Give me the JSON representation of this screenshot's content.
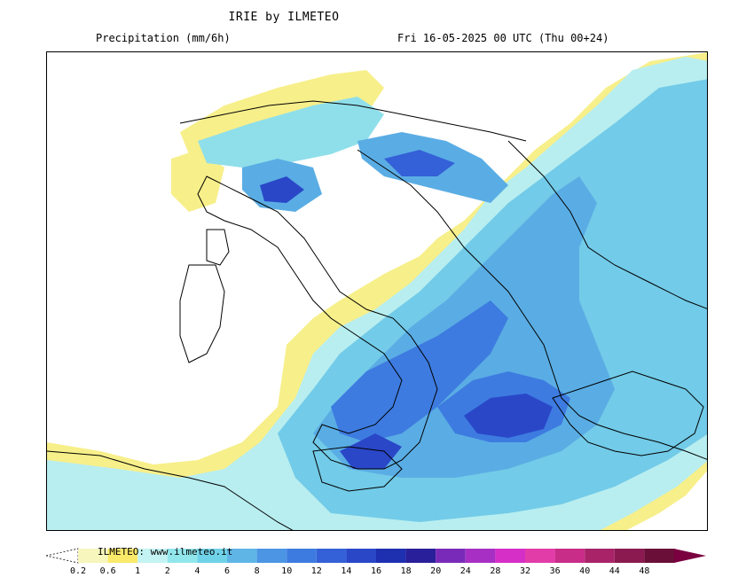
{
  "header": {
    "title": "IRIE by ILMETEO",
    "field_label": "Precipitation (mm/6h)",
    "valid_time": "Fri 16-05-2025 00 UTC (Thu 00+24)"
  },
  "legend": {
    "credit": "ILMETEO: www.ilmeteo.it",
    "unit": "mm/6h",
    "levels": [
      "0.2",
      "0.6",
      "1",
      "2",
      "4",
      "6",
      "8",
      "10",
      "12",
      "14",
      "16",
      "18",
      "20",
      "24",
      "28",
      "32",
      "36",
      "40",
      "44",
      "48"
    ],
    "colors": [
      "#f6f6bd",
      "#fbe96a",
      "#c3f3f3",
      "#91e6ec",
      "#6fd2e8",
      "#5fb6e6",
      "#4b95e4",
      "#3d7be0",
      "#3460d8",
      "#2a47c8",
      "#1e2fb0",
      "#2a1f9a",
      "#7a2ab8",
      "#a72fc4",
      "#d62fc8",
      "#e23ca8",
      "#c82d88",
      "#a82368",
      "#8a1a50",
      "#6a1038"
    ],
    "open_end_left_color": "#ffffff",
    "open_end_right_color": "#7a0040"
  },
  "map": {
    "region": "Italy and central Mediterranean / Balkans",
    "background": "#ffffff",
    "border_color": "#000000"
  }
}
